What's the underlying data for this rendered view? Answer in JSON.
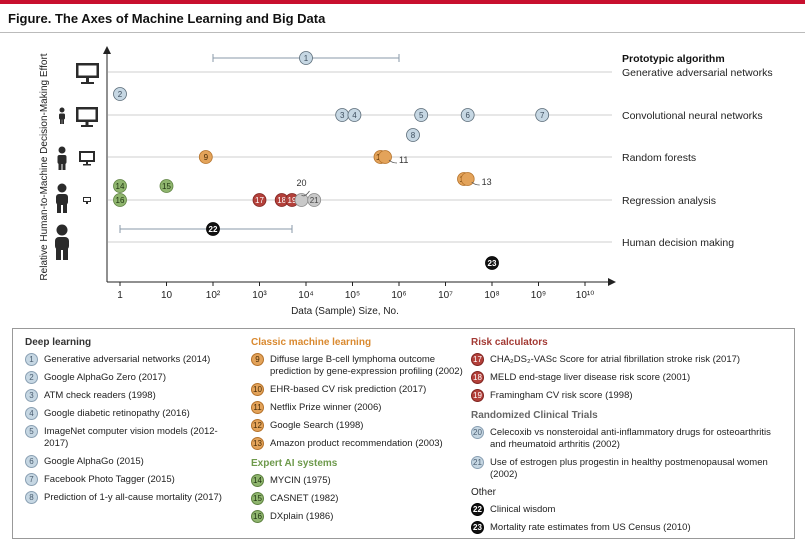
{
  "figure": {
    "title": "Figure. The Axes of Machine Learning and Big Data"
  },
  "chart_data": {
    "type": "scatter",
    "xlabel": "Data (Sample) Size, No.",
    "ylabel": "Relative Human-to-Machine Decision-Making Effort",
    "x_scale": "log",
    "x_ticks": [
      "1",
      "10",
      "10²",
      "10³",
      "10⁴",
      "10⁵",
      "10⁶",
      "10⁷",
      "10⁸",
      "10⁹",
      "10¹⁰"
    ],
    "row_header": "Prototypic algorithm",
    "rows": [
      "Generative adversarial networks",
      "Convolutional neural networks",
      "Random forests",
      "Regression analysis",
      "Human decision making"
    ],
    "points": [
      {
        "id": "1",
        "group": "dl",
        "x": 10000,
        "row": "Generative adversarial networks",
        "range": [
          100,
          1000000
        ]
      },
      {
        "id": "2",
        "group": "dl",
        "x": 1,
        "row": "Convolutional neural networks"
      },
      {
        "id": "3",
        "group": "dl",
        "x": 60000,
        "row": "Convolutional neural networks"
      },
      {
        "id": "4",
        "group": "dl",
        "x": 110000,
        "row": "Convolutional neural networks"
      },
      {
        "id": "5",
        "group": "dl",
        "x": 3000000,
        "row": "Convolutional neural networks"
      },
      {
        "id": "6",
        "group": "dl",
        "x": 30000000,
        "row": "Convolutional neural networks"
      },
      {
        "id": "7",
        "group": "dl",
        "x": 1200000000,
        "row": "Convolutional neural networks"
      },
      {
        "id": "8",
        "group": "dl",
        "x": 2000000,
        "row": "Convolutional neural networks"
      },
      {
        "id": "9",
        "group": "cm",
        "x": 70,
        "row": "Random forests"
      },
      {
        "id": "10",
        "group": "cm",
        "x": 400000,
        "row": "Random forests"
      },
      {
        "id": "11",
        "group": "cm",
        "x": 500000,
        "row": "Random forests"
      },
      {
        "id": "12",
        "group": "cm",
        "x": 25000000,
        "row": "Regression analysis"
      },
      {
        "id": "13",
        "group": "cm",
        "x": 30000000,
        "row": "Regression analysis"
      },
      {
        "id": "14",
        "group": "ea",
        "x": 1,
        "row": "Regression analysis"
      },
      {
        "id": "15",
        "group": "ea",
        "x": 10,
        "row": "Regression analysis"
      },
      {
        "id": "16",
        "group": "ea",
        "x": 1,
        "row": "Regression analysis"
      },
      {
        "id": "17",
        "group": "rc",
        "x": 1000,
        "row": "Regression analysis"
      },
      {
        "id": "18",
        "group": "rc",
        "x": 3000,
        "row": "Regression analysis"
      },
      {
        "id": "19",
        "group": "rc",
        "x": 5000,
        "row": "Regression analysis"
      },
      {
        "id": "20",
        "group": "rt",
        "x": 8000,
        "row": "Regression analysis"
      },
      {
        "id": "21",
        "group": "rt",
        "x": 15000,
        "row": "Regression analysis"
      },
      {
        "id": "22",
        "group": "ot",
        "x": 100,
        "row": "Human decision making",
        "range": [
          1,
          5000
        ]
      },
      {
        "id": "23",
        "group": "ot",
        "x": 100000000,
        "row": "Human decision making"
      }
    ]
  },
  "colors": {
    "dl": "#c6d7e3",
    "cm": "#e3a35a",
    "ea": "#8fb56e",
    "rc": "#b3403a",
    "rt": "#c6d7e3",
    "ot": "#111111"
  },
  "icons": [
    "desktop-computer-icon",
    "person-small-computer-icon",
    "person-computer-icon",
    "person-tiny-computer-icon",
    "person-icon"
  ],
  "legend": {
    "deep_learning": {
      "title": "Deep learning",
      "items": [
        {
          "n": "1",
          "text": "Generative adversarial networks (2014)"
        },
        {
          "n": "2",
          "text": "Google AlphaGo Zero (2017)"
        },
        {
          "n": "3",
          "text": "ATM check readers (1998)"
        },
        {
          "n": "4",
          "text": "Google diabetic retinopathy (2016)"
        },
        {
          "n": "5",
          "text": "ImageNet computer vision models (2012-2017)"
        },
        {
          "n": "6",
          "text": "Google AlphaGo (2015)"
        },
        {
          "n": "7",
          "text": "Facebook Photo Tagger (2015)"
        },
        {
          "n": "8",
          "text": "Prediction of 1-y all-cause mortality (2017)"
        }
      ]
    },
    "classic_ml": {
      "title": "Classic machine learning",
      "items": [
        {
          "n": "9",
          "text": "Diffuse large B-cell lymphoma outcome prediction by gene-expression profiling (2002)"
        },
        {
          "n": "10",
          "text": "EHR-based CV risk prediction (2017)"
        },
        {
          "n": "11",
          "text": "Netflix Prize winner (2006)"
        },
        {
          "n": "12",
          "text": "Google Search (1998)"
        },
        {
          "n": "13",
          "text": "Amazon product recommendation (2003)"
        }
      ]
    },
    "expert_ai": {
      "title": "Expert AI systems",
      "items": [
        {
          "n": "14",
          "text": "MYCIN (1975)"
        },
        {
          "n": "15",
          "text": "CASNET (1982)"
        },
        {
          "n": "16",
          "text": "DXplain (1986)"
        }
      ]
    },
    "risk_calculators": {
      "title": "Risk calculators",
      "items": [
        {
          "n": "17",
          "text": "CHA₂DS₂-VASc Score for atrial fibrillation stroke risk (2017)"
        },
        {
          "n": "18",
          "text": "MELD end-stage liver disease risk score (2001)"
        },
        {
          "n": "19",
          "text": "Framingham CV risk score (1998)"
        }
      ]
    },
    "rct": {
      "title": "Randomized Clinical Trials",
      "items": [
        {
          "n": "20",
          "text": "Celecoxib vs nonsteroidal anti-inflammatory drugs for osteoarthritis and rheumatoid arthritis (2002)"
        },
        {
          "n": "21",
          "text": "Use of estrogen plus progestin in healthy postmenopausal women (2002)"
        }
      ]
    },
    "other": {
      "title": "Other",
      "items": [
        {
          "n": "22",
          "text": "Clinical wisdom"
        },
        {
          "n": "23",
          "text": "Mortality rate estimates from US Census (2010)"
        }
      ]
    }
  }
}
